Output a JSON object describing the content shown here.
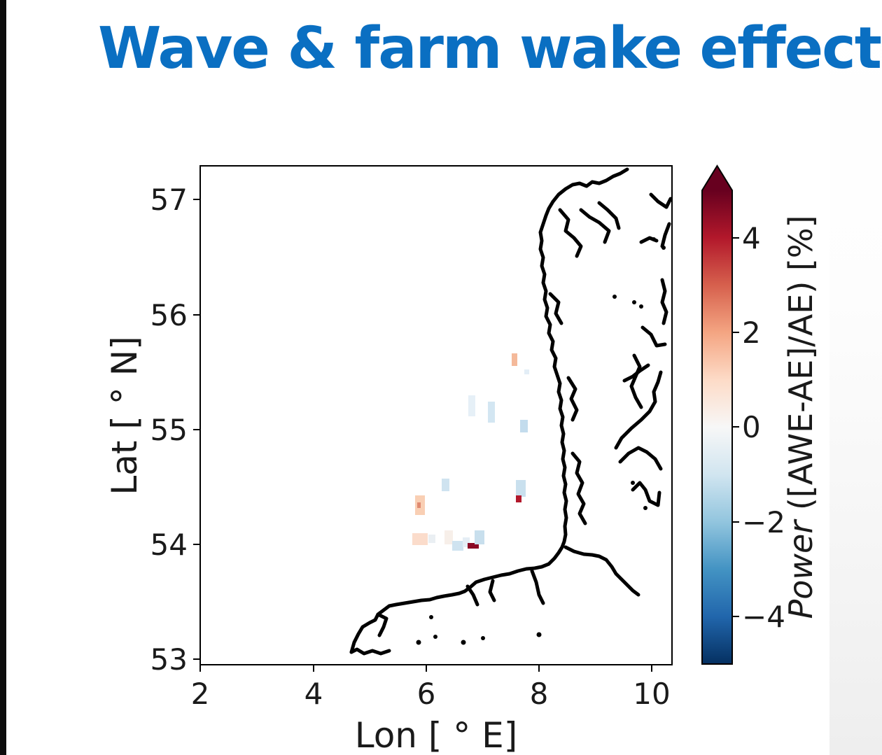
{
  "slide": {
    "title": "Wave & farm wake effect"
  },
  "map": {
    "xlabel": "Lon [ °  E]",
    "ylabel": "Lat [ °  N]",
    "xlim": [
      2,
      10.3
    ],
    "ylim": [
      52.95,
      57.3
    ],
    "xticks": [
      "2",
      "4",
      "6",
      "8",
      "10"
    ],
    "yticks": [
      "53",
      "54",
      "55",
      "56",
      "57"
    ],
    "colorbar": {
      "label_italic": "Power",
      "label_rest": " ([AWE-AE]/AE) [%]",
      "range": [
        -5,
        5
      ],
      "extend": "max",
      "ticks": [
        "−4",
        "−2",
        "0",
        "2",
        "4"
      ],
      "colors": [
        "#053061",
        "#2166ac",
        "#4393c3",
        "#92c5de",
        "#d1e5f0",
        "#f7f7f7",
        "#fddbc7",
        "#f4a582",
        "#d6604d",
        "#b2182b",
        "#67001f"
      ]
    }
  }
}
